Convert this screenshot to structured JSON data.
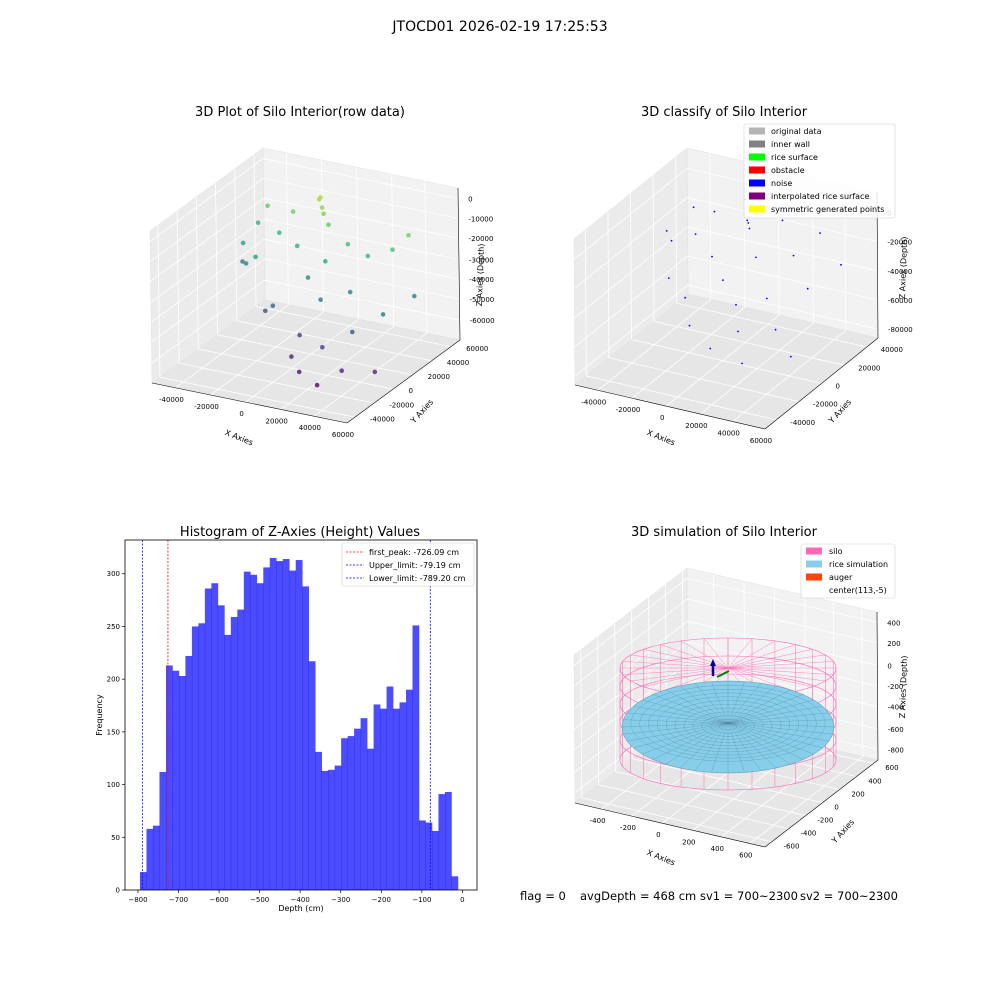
{
  "figure": {
    "suptitle": "JTOCD01 2026-02-19 17:25:53",
    "footer": {
      "flag": "flag = 0",
      "avg_depth": "avgDepth = 468 cm",
      "sv1": "sv1 = 700~2300",
      "sv2": "sv2 = 700~2300"
    }
  },
  "chart_data": [
    {
      "type": "scatter",
      "projection": "3d",
      "title": "3D Plot of Silo Interior(row data)",
      "xlabel": "X Axies",
      "ylabel": "Y Axies",
      "zlabel": "Z Axies (Depth)",
      "xticks": [
        "-40000",
        "-20000",
        "0",
        "20000",
        "40000",
        "60000"
      ],
      "yticks": [
        "-40000",
        "-20000",
        "0",
        "20000",
        "40000",
        "60000"
      ],
      "zticks": [
        "0",
        "-10000",
        "-20000",
        "-30000",
        "-40000",
        "-50000",
        "-60000"
      ],
      "xlim": [
        -50000,
        65000
      ],
      "ylim": [
        -50000,
        65000
      ],
      "zlim": [
        -70000,
        5000
      ],
      "colormap": "viridis",
      "points": [
        {
          "x": -46000,
          "y": 36000,
          "z": -40000
        },
        {
          "x": -42000,
          "y": 30000,
          "z": -28000
        },
        {
          "x": -40000,
          "y": 42000,
          "z": -22000
        },
        {
          "x": -38000,
          "y": 26000,
          "z": -36000
        },
        {
          "x": -36000,
          "y": 45000,
          "z": -14000
        },
        {
          "x": -30000,
          "y": 22000,
          "z": -30000
        },
        {
          "x": -24000,
          "y": 36000,
          "z": -22000
        },
        {
          "x": -20000,
          "y": 14000,
          "z": -52000
        },
        {
          "x": -18000,
          "y": 40000,
          "z": -12000
        },
        {
          "x": -12000,
          "y": 8000,
          "z": -46000
        },
        {
          "x": -10000,
          "y": 30000,
          "z": -24000
        },
        {
          "x": -6000,
          "y": 46000,
          "z": -6000
        },
        {
          "x": -4000,
          "y": 44000,
          "z": -4000
        },
        {
          "x": -2000,
          "y": 42000,
          "z": -8000
        },
        {
          "x": 0,
          "y": 40000,
          "z": -10000
        },
        {
          "x": 2000,
          "y": 20000,
          "z": -34000
        },
        {
          "x": 4000,
          "y": 38000,
          "z": -14000
        },
        {
          "x": 6000,
          "y": 4000,
          "z": -56000
        },
        {
          "x": 8000,
          "y": -8000,
          "z": -62000
        },
        {
          "x": 10000,
          "y": 24000,
          "z": -26000
        },
        {
          "x": 14000,
          "y": 12000,
          "z": -40000
        },
        {
          "x": 16000,
          "y": -14000,
          "z": -66000
        },
        {
          "x": 20000,
          "y": 30000,
          "z": -18000
        },
        {
          "x": 24000,
          "y": -4000,
          "z": -56000
        },
        {
          "x": 28000,
          "y": 18000,
          "z": -36000
        },
        {
          "x": 30000,
          "y": -20000,
          "z": -68000
        },
        {
          "x": 34000,
          "y": 26000,
          "z": -20000
        },
        {
          "x": 36000,
          "y": 6000,
          "z": -50000
        },
        {
          "x": 40000,
          "y": -12000,
          "z": -62000
        },
        {
          "x": 44000,
          "y": 34000,
          "z": -18000
        },
        {
          "x": 50000,
          "y": 40000,
          "z": -12000
        },
        {
          "x": 52000,
          "y": 10000,
          "z": -40000
        },
        {
          "x": 56000,
          "y": -6000,
          "z": -62000
        },
        {
          "x": 60000,
          "y": 28000,
          "z": -36000
        }
      ]
    },
    {
      "type": "scatter",
      "projection": "3d",
      "title": "3D classify of Silo Interior",
      "xlabel": "X Axies",
      "ylabel": "Y Axies",
      "zlabel": "Z Axies (Depth)",
      "xticks": [
        "-40000",
        "-20000",
        "0",
        "20000",
        "40000",
        "60000"
      ],
      "yticks": [
        "-40000",
        "-20000",
        "0",
        "20000",
        "40000"
      ],
      "zticks": [
        "0",
        "-20000",
        "-40000",
        "-60000",
        "-80000"
      ],
      "xlim": [
        -50000,
        65000
      ],
      "ylim": [
        -50000,
        50000
      ],
      "zlim": [
        -90000,
        10000
      ],
      "legend": [
        {
          "label": "original data",
          "color": "#b3b3b3"
        },
        {
          "label": "inner wall",
          "color": "#808080"
        },
        {
          "label": "rice surface",
          "color": "#00ff00"
        },
        {
          "label": "obstacle",
          "color": "#ff0000"
        },
        {
          "label": "noise",
          "color": "#0000ff"
        },
        {
          "label": "interpolated rice surface",
          "color": "#800080"
        },
        {
          "label": "symmetric generated points",
          "color": "#ffff00"
        }
      ],
      "legend_loc": "upper right",
      "points": [
        {
          "x": -46000,
          "y": 30000,
          "z": -40000
        },
        {
          "x": -42000,
          "y": 20000,
          "z": -26000
        },
        {
          "x": -38000,
          "y": 38000,
          "z": -20000
        },
        {
          "x": -34000,
          "y": 10000,
          "z": -50000
        },
        {
          "x": -30000,
          "y": 28000,
          "z": -30000
        },
        {
          "x": -24000,
          "y": 36000,
          "z": -18000
        },
        {
          "x": -20000,
          "y": 4000,
          "z": -56000
        },
        {
          "x": -16000,
          "y": 22000,
          "z": -38000
        },
        {
          "x": -12000,
          "y": -4000,
          "z": -68000
        },
        {
          "x": -8000,
          "y": 40000,
          "z": -8000
        },
        {
          "x": -4000,
          "y": 14000,
          "z": -46000
        },
        {
          "x": 0,
          "y": 30000,
          "z": -14000
        },
        {
          "x": 2000,
          "y": 28000,
          "z": -14000
        },
        {
          "x": 4000,
          "y": 26000,
          "z": -16000
        },
        {
          "x": 6000,
          "y": -12000,
          "z": -74000
        },
        {
          "x": 8000,
          "y": 8000,
          "z": -56000
        },
        {
          "x": 12000,
          "y": 20000,
          "z": -30000
        },
        {
          "x": 16000,
          "y": -2000,
          "z": -66000
        },
        {
          "x": 20000,
          "y": 32000,
          "z": -10000
        },
        {
          "x": 24000,
          "y": 12000,
          "z": -50000
        },
        {
          "x": 28000,
          "y": -16000,
          "z": -76000
        },
        {
          "x": 32000,
          "y": 24000,
          "z": -26000
        },
        {
          "x": 36000,
          "y": 2000,
          "z": -62000
        },
        {
          "x": 40000,
          "y": 36000,
          "z": -16000
        },
        {
          "x": 46000,
          "y": 16000,
          "z": -40000
        },
        {
          "x": 52000,
          "y": -8000,
          "z": -70000
        },
        {
          "x": 58000,
          "y": 28000,
          "z": -28000
        }
      ]
    },
    {
      "type": "bar",
      "title": "Histogram of Z-Axies (Height) Values",
      "xlabel": "Depth (cm)",
      "ylabel": "Frequency",
      "xticks": [
        "−800",
        "−700",
        "−600",
        "−500",
        "−400",
        "−300",
        "−200",
        "−100",
        "0"
      ],
      "yticks": [
        "0",
        "50",
        "100",
        "150",
        "200",
        "250",
        "300"
      ],
      "xlim": [
        -832,
        36
      ],
      "ylim": [
        0,
        332
      ],
      "bin_start": -795,
      "bin_width": 16,
      "values": [
        17,
        58,
        61,
        112,
        213,
        208,
        203,
        222,
        250,
        253,
        286,
        291,
        270,
        242,
        259,
        266,
        302,
        299,
        291,
        306,
        315,
        312,
        314,
        303,
        313,
        288,
        217,
        131,
        113,
        114,
        118,
        144,
        146,
        153,
        163,
        134,
        176,
        172,
        193,
        172,
        178,
        190,
        251,
        66,
        64,
        56,
        91,
        93,
        13
      ],
      "color": "#0000ff",
      "vlines": [
        {
          "label": "first_peak: -726.09 cm",
          "x": -726.09,
          "color": "#ff0000"
        },
        {
          "label": "Upper_limit: -79.19 cm",
          "x": -79.19,
          "color": "#0000ff"
        },
        {
          "label": "Lower_limit: -789.20 cm",
          "x": -789.2,
          "color": "#0000ff"
        }
      ],
      "legend_loc": "upper right"
    },
    {
      "type": "surface",
      "projection": "3d",
      "title": "3D simulation of Silo Interior",
      "xlabel": "X Axies",
      "ylabel": "Y Axies",
      "zlabel": "Z Axies (Depth)",
      "xticks": [
        "-400",
        "-200",
        "0",
        "200",
        "400",
        "600"
      ],
      "yticks": [
        "-600",
        "-400",
        "-200",
        "0",
        "200",
        "400",
        "600"
      ],
      "zticks": [
        "400",
        "200",
        "0",
        "-200",
        "-400",
        "-600",
        "-800"
      ],
      "xlim": [
        -550,
        750
      ],
      "ylim": [
        -650,
        650
      ],
      "zlim": [
        -900,
        500
      ],
      "legend": [
        {
          "label": "silo",
          "color": "#ff69b4"
        },
        {
          "label": "rice simulation",
          "color": "#87ceeb"
        },
        {
          "label": "auger",
          "color": "#ff4500"
        },
        {
          "label": "center(113,-5)",
          "color": ""
        }
      ],
      "legend_loc": "upper right",
      "silo_center": [
        113,
        -5
      ],
      "silo_radius": 560,
      "silo_z_range": [
        -900,
        0
      ],
      "rice_surface_level": -468
    }
  ]
}
